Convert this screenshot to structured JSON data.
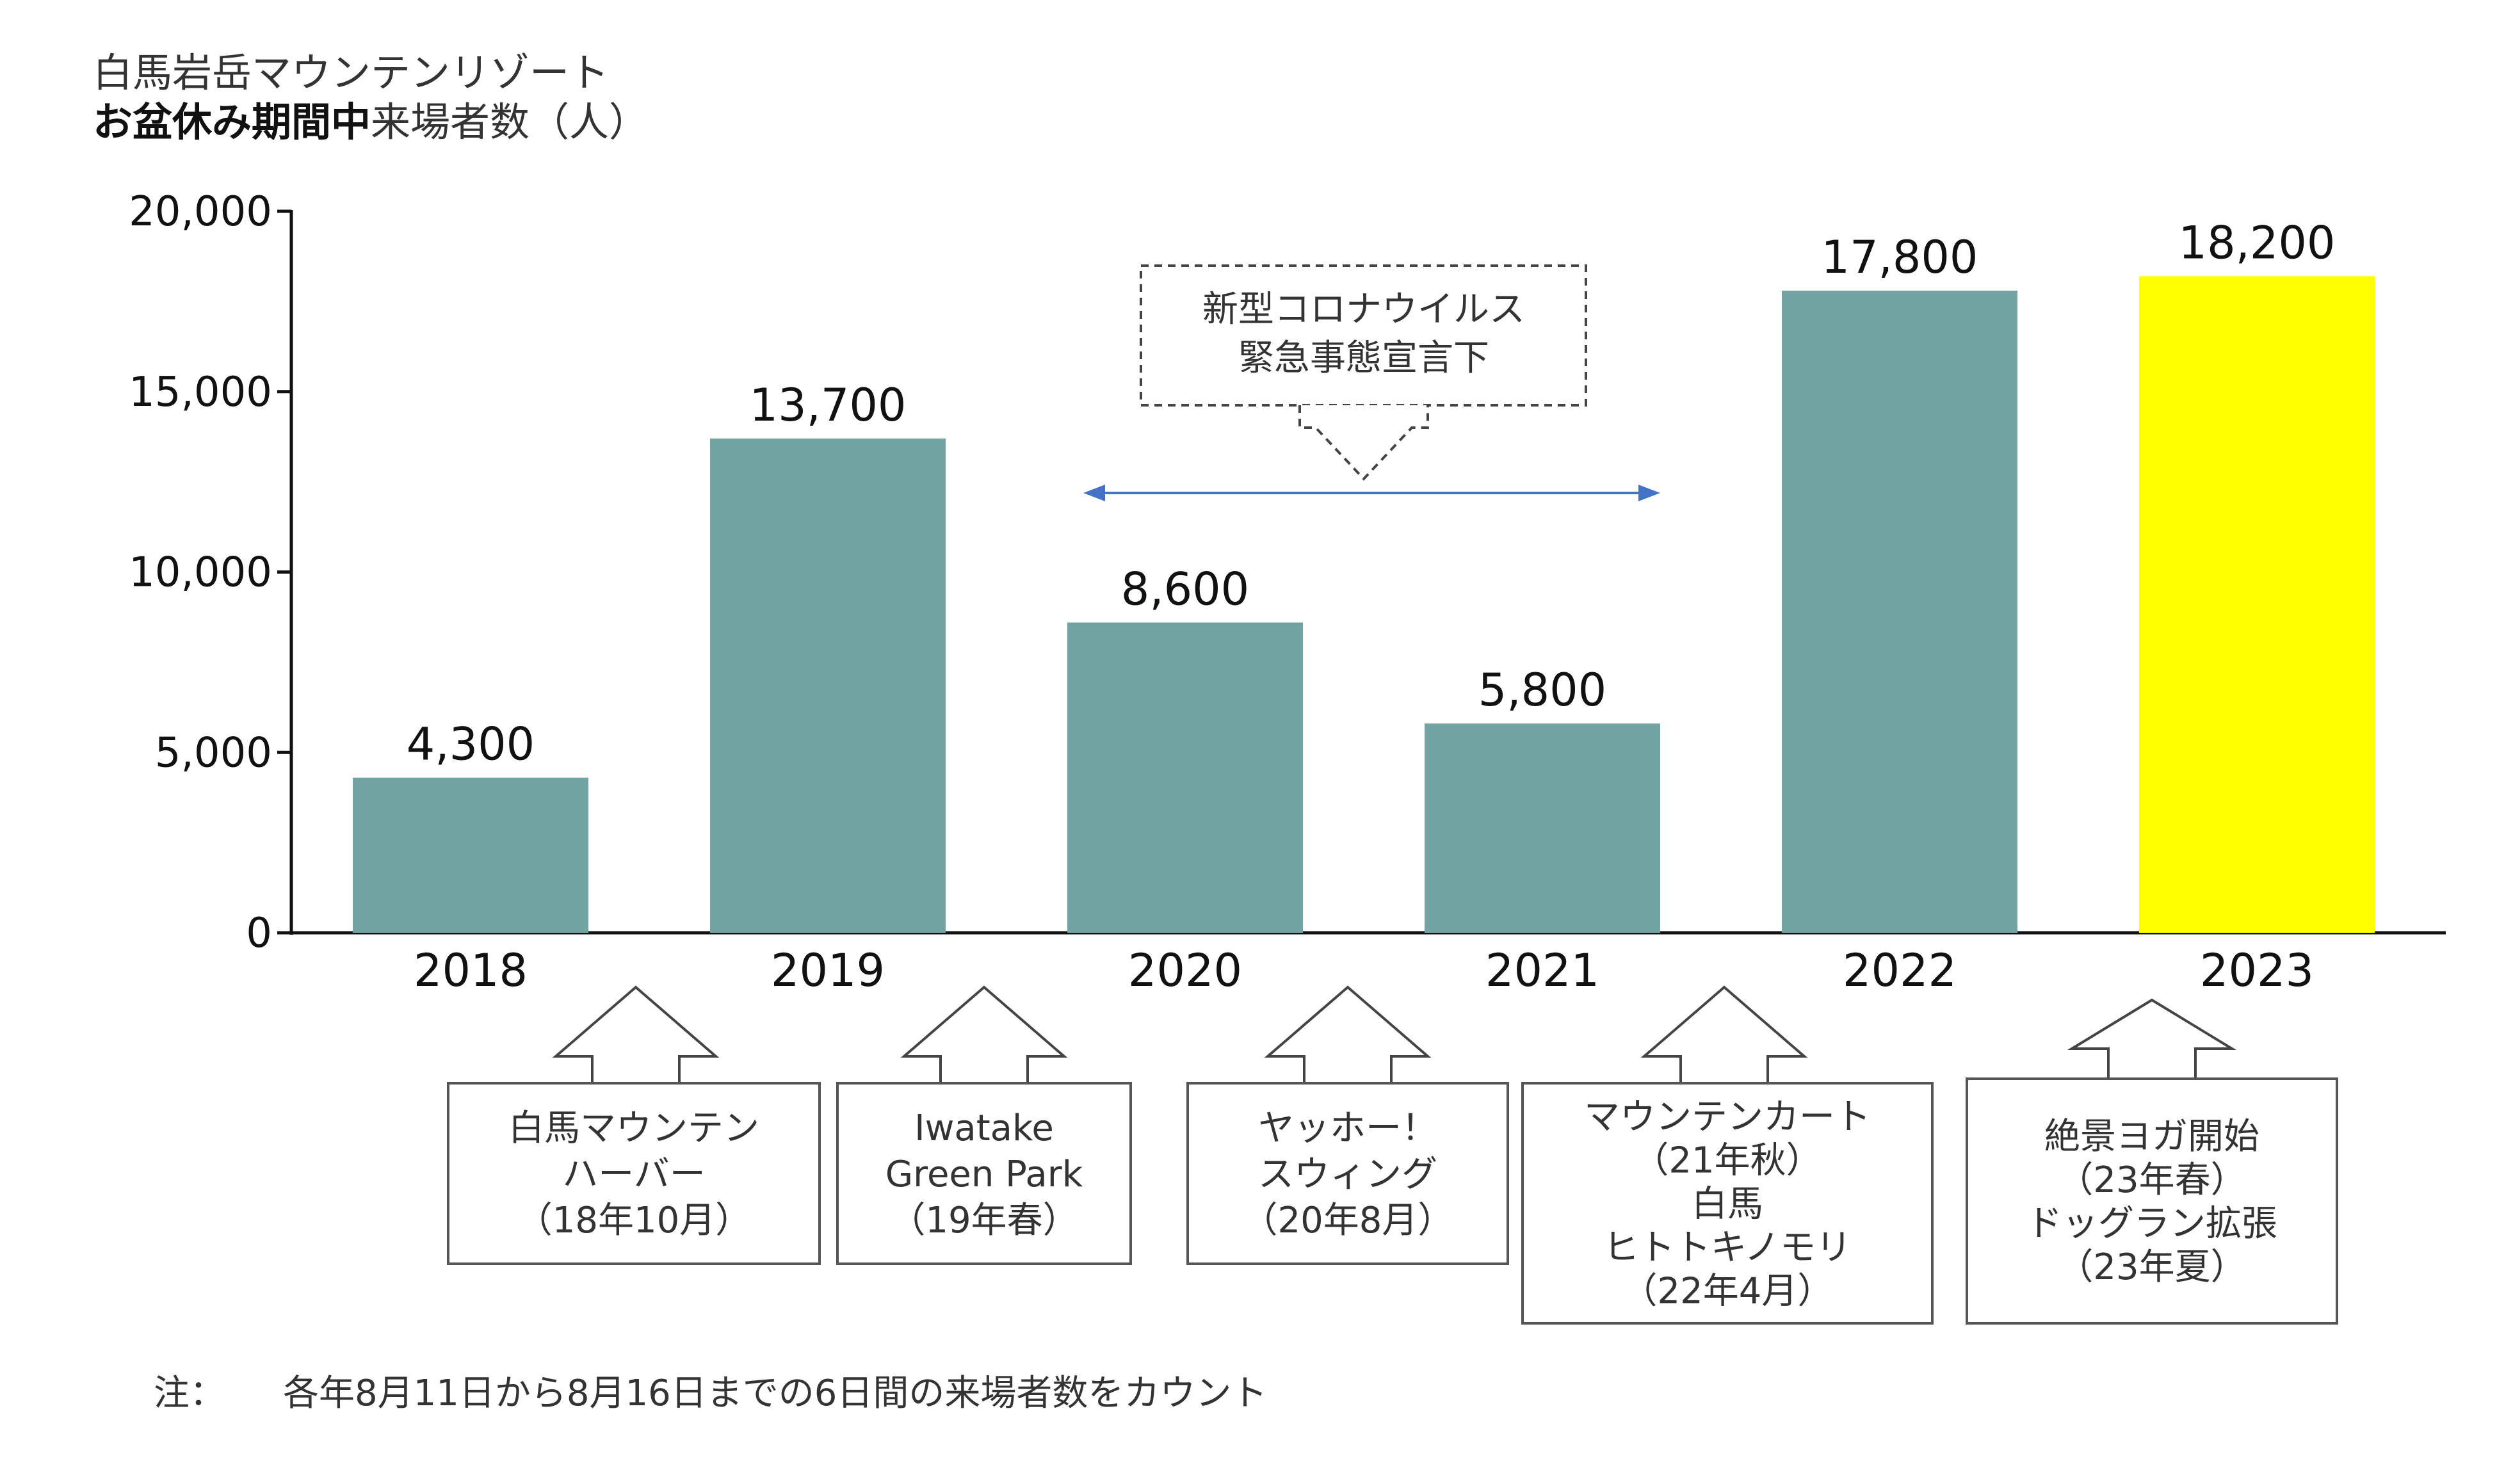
{
  "chart_data": {
    "type": "bar",
    "title_line1": "白馬岩岳マウンテンリゾート",
    "title_line2_bold": "お盆休み期間中",
    "title_line2_rest": "来場者数（人）",
    "categories": [
      "2018",
      "2019",
      "2020",
      "2021",
      "2022",
      "2023"
    ],
    "values": [
      4300,
      13700,
      8600,
      5800,
      17800,
      18200
    ],
    "value_labels": [
      "4,300",
      "13,700",
      "8,600",
      "5,800",
      "17,800",
      "18,200"
    ],
    "ylim": [
      0,
      20000
    ],
    "yticks": [
      0,
      5000,
      10000,
      15000,
      20000
    ],
    "ytick_labels": [
      "0",
      "5,000",
      "10,000",
      "15,000",
      "20,000"
    ],
    "grid": false,
    "colors": {
      "bar": "#72a3a3",
      "highlight": "#ffff00",
      "arrow": "#4472c4"
    },
    "highlight_index": 5,
    "covid_annotation": {
      "lines": [
        "新型コロナウイルス",
        "緊急事態宣言下"
      ],
      "span_categories": [
        "2020",
        "2021"
      ]
    },
    "events": [
      {
        "category": "2018",
        "lines": [
          "白馬マウンテン",
          "ハーバー",
          "（18年10月）"
        ]
      },
      {
        "category": "2019",
        "lines": [
          "Iwatake",
          "Green Park",
          "（19年春）"
        ]
      },
      {
        "category": "2020",
        "lines": [
          "ヤッホー！",
          "スウィング",
          "（20年8月）"
        ]
      },
      {
        "category": "2021",
        "lines": [
          "マウンテンカート",
          "（21年秋）",
          "白馬",
          "ヒトトキノモリ",
          "（22年4月）"
        ]
      },
      {
        "category": "2023",
        "lines": [
          "絶景ヨガ開始",
          "（23年春）",
          "ドッグラン拡張",
          "（23年夏）"
        ]
      }
    ],
    "note_label": "注：",
    "note_text": "各年8月11日から8月16日までの6日間の来場者数をカウント"
  }
}
